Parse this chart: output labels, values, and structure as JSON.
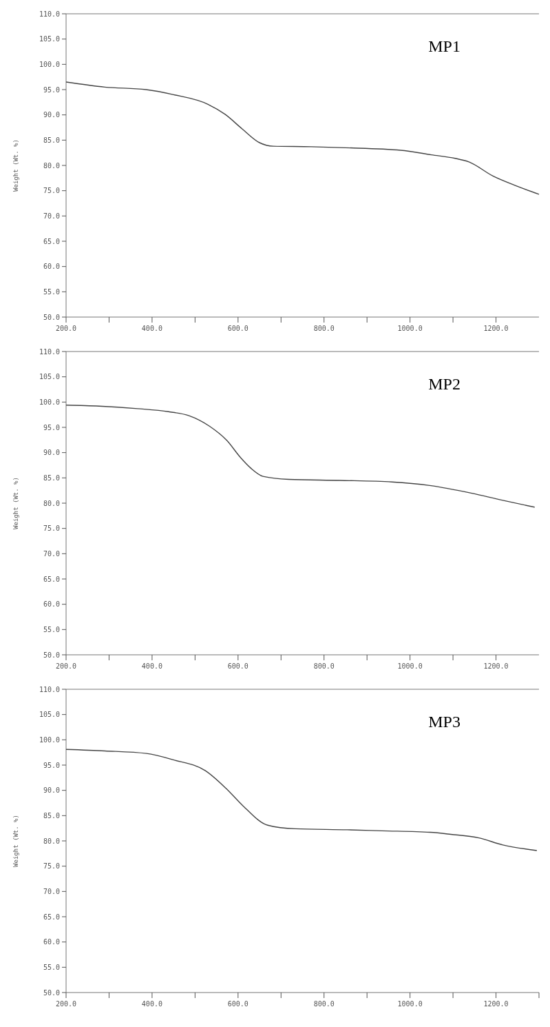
{
  "chart_data": [
    {
      "type": "line",
      "title": "MP1",
      "ylabel": "Weight (Wt. %)",
      "xlim": [
        200,
        1300
      ],
      "ylim": [
        50,
        110
      ],
      "xticks": [
        {
          "value": 200,
          "label": "200.0"
        },
        {
          "value": 300,
          "label": null
        },
        {
          "value": 400,
          "label": "400.0"
        },
        {
          "value": 500,
          "label": null
        },
        {
          "value": 600,
          "label": "600.0"
        },
        {
          "value": 700,
          "label": null
        },
        {
          "value": 800,
          "label": "800.0"
        },
        {
          "value": 900,
          "label": null
        },
        {
          "value": 1000,
          "label": "1000.0"
        },
        {
          "value": 1100,
          "label": null
        },
        {
          "value": 1200,
          "label": "1200.0"
        }
      ],
      "yticks": [
        {
          "value": 50,
          "label": "50.0"
        },
        {
          "value": 55,
          "label": "55.0"
        },
        {
          "value": 60,
          "label": "60.0"
        },
        {
          "value": 65,
          "label": "65.0"
        },
        {
          "value": 70,
          "label": "70.0"
        },
        {
          "value": 75,
          "label": "75.0"
        },
        {
          "value": 80,
          "label": "80.0"
        },
        {
          "value": 85,
          "label": "85.0"
        },
        {
          "value": 90,
          "label": "90.0"
        },
        {
          "value": 95,
          "label": "95.0"
        },
        {
          "value": 100,
          "label": "100.0"
        },
        {
          "value": 105,
          "label": "105.0"
        },
        {
          "value": 110,
          "label": "110.0"
        }
      ],
      "grid": false,
      "series": [
        {
          "color": "#444444",
          "x": [
            200,
            290,
            386,
            450,
            530,
            570,
            610,
            650,
            682,
            770,
            850,
            978,
            1050,
            1105,
            1137,
            1193,
            1249,
            1300
          ],
          "values": [
            96.5,
            95.5,
            95.0,
            94.0,
            92.1,
            90.1,
            87.2,
            84.5,
            83.8,
            83.7,
            83.5,
            83.0,
            82.1,
            81.4,
            80.7,
            77.9,
            75.9,
            74.3
          ]
        }
      ]
    },
    {
      "type": "line",
      "title": "MP2",
      "ylabel": "Weight (Wt. %)",
      "xlim": [
        200,
        1300
      ],
      "ylim": [
        50,
        110
      ],
      "xticks": [
        {
          "value": 200,
          "label": "200.0"
        },
        {
          "value": 300,
          "label": null
        },
        {
          "value": 400,
          "label": "400.0"
        },
        {
          "value": 500,
          "label": null
        },
        {
          "value": 600,
          "label": "600.0"
        },
        {
          "value": 700,
          "label": null
        },
        {
          "value": 800,
          "label": "800.0"
        },
        {
          "value": 900,
          "label": null
        },
        {
          "value": 1000,
          "label": "1000.0"
        },
        {
          "value": 1100,
          "label": null
        },
        {
          "value": 1200,
          "label": "1200.0"
        }
      ],
      "yticks": [
        {
          "value": 50,
          "label": "50.0"
        },
        {
          "value": 55,
          "label": "55.0"
        },
        {
          "value": 60,
          "label": "60.0"
        },
        {
          "value": 65,
          "label": "65.0"
        },
        {
          "value": 70,
          "label": "70.0"
        },
        {
          "value": 75,
          "label": "75.0"
        },
        {
          "value": 80,
          "label": "80.0"
        },
        {
          "value": 85,
          "label": "85.0"
        },
        {
          "value": 90,
          "label": "90.0"
        },
        {
          "value": 95,
          "label": "95.0"
        },
        {
          "value": 100,
          "label": "100.0"
        },
        {
          "value": 105,
          "label": "105.0"
        },
        {
          "value": 110,
          "label": "110.0"
        }
      ],
      "grid": false,
      "series": [
        {
          "color": "#444444",
          "x": [
            200,
            277,
            366,
            438,
            486,
            534,
            574,
            606,
            630,
            658,
            718,
            838,
            958,
            1046,
            1142,
            1214,
            1290
          ],
          "values": [
            99.4,
            99.2,
            98.7,
            98.1,
            97.3,
            95.2,
            92.4,
            89.0,
            86.9,
            85.3,
            84.7,
            84.5,
            84.2,
            83.5,
            82.0,
            80.6,
            79.2
          ]
        }
      ]
    },
    {
      "type": "line",
      "title": "MP3",
      "ylabel": "Weight (Wt. %)",
      "xlim": [
        200,
        1300
      ],
      "ylim": [
        50,
        110
      ],
      "xticks": [
        {
          "value": 200,
          "label": "200.0"
        },
        {
          "value": 300,
          "label": null
        },
        {
          "value": 400,
          "label": "400.0"
        },
        {
          "value": 500,
          "label": null
        },
        {
          "value": 600,
          "label": "600.0"
        },
        {
          "value": 700,
          "label": null
        },
        {
          "value": 800,
          "label": "800.0"
        },
        {
          "value": 900,
          "label": null
        },
        {
          "value": 1000,
          "label": "1000.0"
        },
        {
          "value": 1100,
          "label": null
        },
        {
          "value": 1200,
          "label": "1200.0"
        },
        {
          "value": 1300,
          "label": null
        }
      ],
      "yticks": [
        {
          "value": 50,
          "label": "50.0"
        },
        {
          "value": 55,
          "label": "55.0"
        },
        {
          "value": 60,
          "label": "60.0"
        },
        {
          "value": 65,
          "label": "65.0"
        },
        {
          "value": 70,
          "label": "70.0"
        },
        {
          "value": 75,
          "label": "75.0"
        },
        {
          "value": 80,
          "label": "80.0"
        },
        {
          "value": 85,
          "label": "85.0"
        },
        {
          "value": 90,
          "label": "90.0"
        },
        {
          "value": 95,
          "label": "95.0"
        },
        {
          "value": 100,
          "label": "100.0"
        },
        {
          "value": 105,
          "label": "105.0"
        },
        {
          "value": 110,
          "label": "110.0"
        }
      ],
      "grid": false,
      "series": [
        {
          "color": "#444444",
          "x": [
            200,
            290,
            387,
            451,
            524,
            572,
            612,
            669,
            733,
            854,
            934,
            1047,
            1095,
            1160,
            1216,
            1295
          ],
          "values": [
            98.1,
            97.8,
            97.3,
            96.0,
            93.9,
            90.4,
            86.9,
            83.1,
            82.4,
            82.2,
            82.0,
            81.7,
            81.3,
            80.6,
            79.2,
            78.1
          ]
        }
      ]
    }
  ]
}
